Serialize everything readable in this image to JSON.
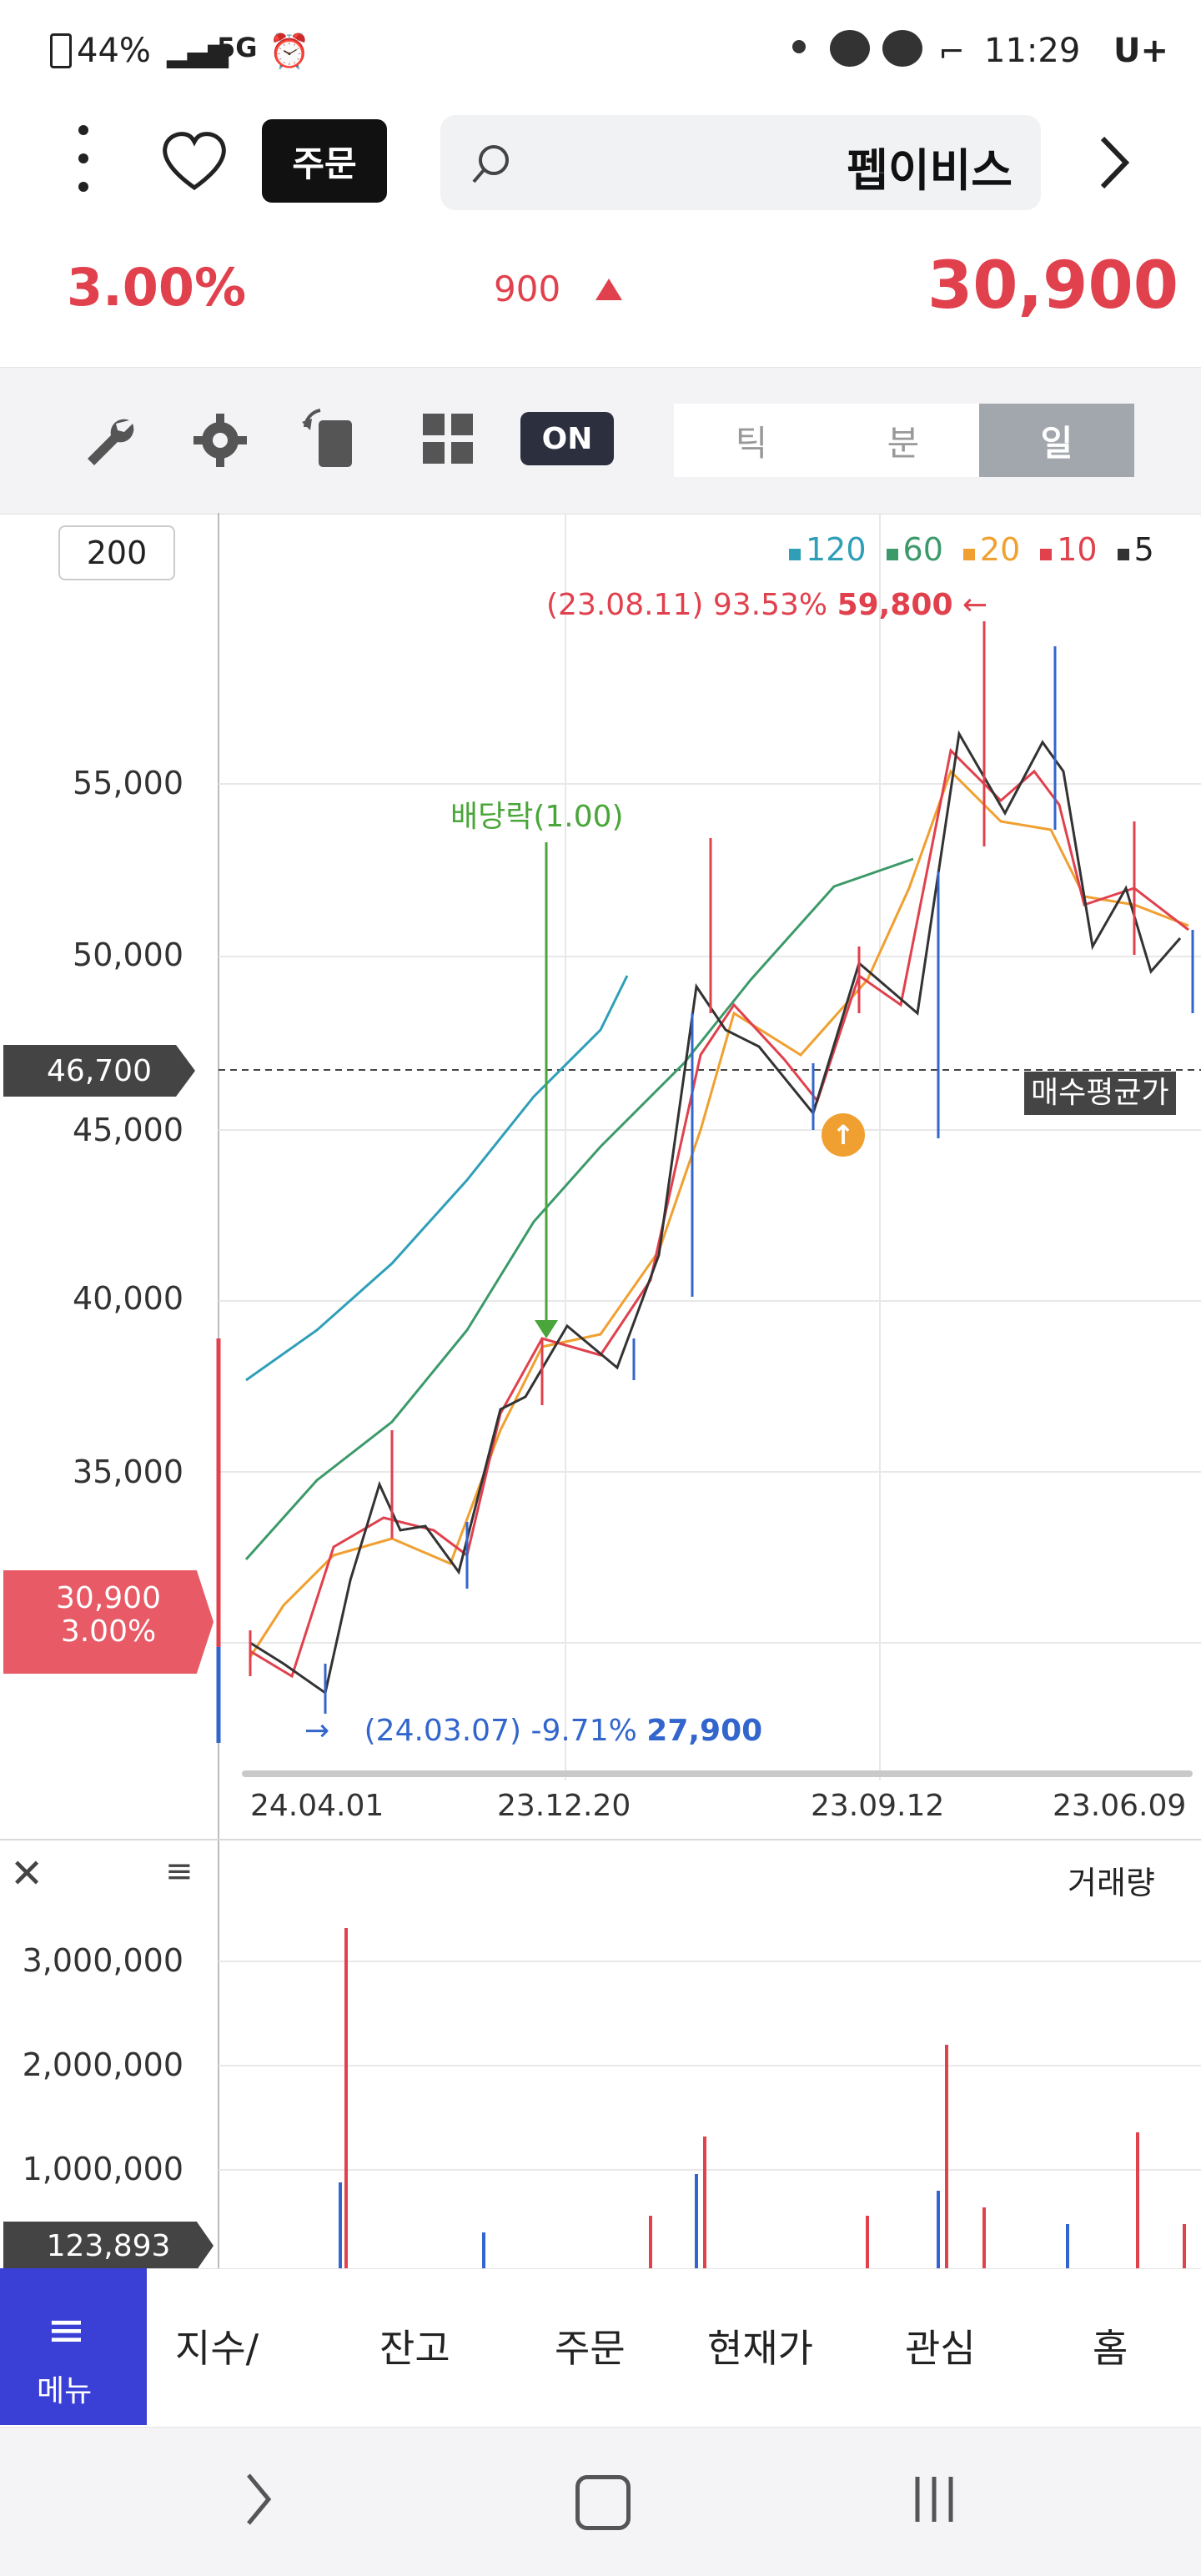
{
  "status_bar": {
    "battery": "44%",
    "network": "5G",
    "time": "11:29",
    "carrier": "U+"
  },
  "header": {
    "stock_name": "펩이비스",
    "order_button": "주문"
  },
  "price": {
    "current": "30,900",
    "change": "900",
    "change_pct": "3.00%"
  },
  "toolbar": {
    "tabs": [
      "일",
      "분",
      "틱"
    ],
    "on_label": "ON"
  },
  "chart": {
    "period_box": "200",
    "legend": [
      {
        "label": "5",
        "color": "#333333"
      },
      {
        "label": "10",
        "color": "#e0414d"
      },
      {
        "label": "20",
        "color": "#f0a030"
      },
      {
        "label": "60",
        "color": "#3c9a6a"
      },
      {
        "label": "120",
        "color": "#2f9fb8"
      }
    ],
    "high_marker": {
      "value": "59,800",
      "info": "(23.08.11) 93.53%"
    },
    "low_marker": {
      "value": "27,900",
      "info": "(24.03.07) -9.71%"
    },
    "dividend_label": "배당락(1.00)",
    "avg_price_label": "매수평균가",
    "avg_price_value": "46,700",
    "current_tag_price": "30,900",
    "current_tag_pct": "3.00%",
    "y_ticks": [
      "55,000",
      "50,000",
      "45,000",
      "40,000",
      "35,000"
    ],
    "x_ticks": [
      "24.04.01",
      "23.12.20",
      "23.09.12",
      "23.06.09"
    ]
  },
  "volume": {
    "title": "거래량",
    "y_ticks": [
      "3,000,000",
      "2,000,000",
      "1,000,000"
    ],
    "current_tag": "123,893"
  },
  "bottom_nav": {
    "menu_label": "메뉴",
    "items": [
      "지수/",
      "잔고",
      "주문",
      "현재가",
      "관심",
      "홈"
    ]
  }
}
